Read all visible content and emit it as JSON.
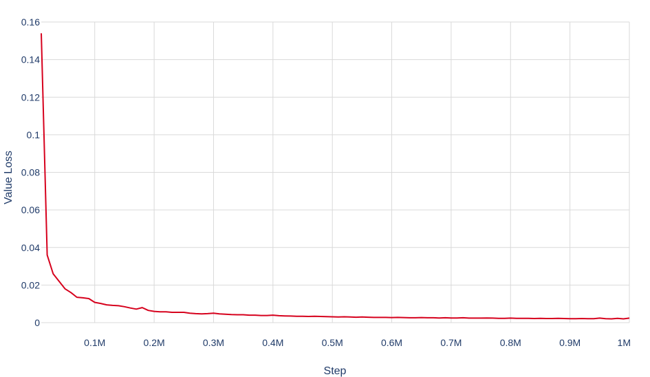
{
  "chart_data": {
    "type": "line",
    "xlabel": "Step",
    "ylabel": "Value Loss",
    "xlim": [
      0.01,
      1.0
    ],
    "ylim": [
      0,
      0.16
    ],
    "x_unit": "M",
    "grid": true,
    "x_ticks": [
      {
        "value": 0.1,
        "label": "0.1M"
      },
      {
        "value": 0.2,
        "label": "0.2M"
      },
      {
        "value": 0.3,
        "label": "0.3M"
      },
      {
        "value": 0.4,
        "label": "0.4M"
      },
      {
        "value": 0.5,
        "label": "0.5M"
      },
      {
        "value": 0.6,
        "label": "0.6M"
      },
      {
        "value": 0.7,
        "label": "0.7M"
      },
      {
        "value": 0.8,
        "label": "0.8M"
      },
      {
        "value": 0.9,
        "label": "0.9M"
      },
      {
        "value": 1.0,
        "label": "1M"
      }
    ],
    "y_ticks": [
      {
        "value": 0,
        "label": "0"
      },
      {
        "value": 0.02,
        "label": "0.02"
      },
      {
        "value": 0.04,
        "label": "0.04"
      },
      {
        "value": 0.06,
        "label": "0.06"
      },
      {
        "value": 0.08,
        "label": "0.08"
      },
      {
        "value": 0.1,
        "label": "0.1"
      },
      {
        "value": 0.12,
        "label": "0.12"
      },
      {
        "value": 0.14,
        "label": "0.14"
      },
      {
        "value": 0.16,
        "label": "0.16"
      }
    ],
    "series": [
      {
        "color": "#d6001c",
        "x": [
          0.01,
          0.02,
          0.03,
          0.04,
          0.05,
          0.06,
          0.07,
          0.08,
          0.09,
          0.1,
          0.11,
          0.12,
          0.13,
          0.14,
          0.15,
          0.16,
          0.17,
          0.18,
          0.19,
          0.2,
          0.21,
          0.22,
          0.23,
          0.24,
          0.25,
          0.26,
          0.27,
          0.28,
          0.29,
          0.3,
          0.31,
          0.32,
          0.33,
          0.34,
          0.35,
          0.36,
          0.37,
          0.38,
          0.39,
          0.4,
          0.41,
          0.42,
          0.43,
          0.44,
          0.45,
          0.46,
          0.47,
          0.48,
          0.49,
          0.5,
          0.51,
          0.52,
          0.53,
          0.54,
          0.55,
          0.56,
          0.57,
          0.58,
          0.59,
          0.6,
          0.61,
          0.62,
          0.63,
          0.64,
          0.65,
          0.66,
          0.67,
          0.68,
          0.69,
          0.7,
          0.71,
          0.72,
          0.73,
          0.74,
          0.75,
          0.76,
          0.77,
          0.78,
          0.79,
          0.8,
          0.81,
          0.82,
          0.83,
          0.84,
          0.85,
          0.86,
          0.87,
          0.88,
          0.89,
          0.9,
          0.91,
          0.92,
          0.93,
          0.94,
          0.95,
          0.96,
          0.97,
          0.98,
          0.99,
          1.0
        ],
        "y": [
          0.154,
          0.036,
          0.026,
          0.022,
          0.018,
          0.016,
          0.0135,
          0.0132,
          0.0128,
          0.0108,
          0.0102,
          0.0095,
          0.0092,
          0.009,
          0.0085,
          0.0078,
          0.0072,
          0.008,
          0.0065,
          0.006,
          0.0058,
          0.0058,
          0.0055,
          0.0055,
          0.0055,
          0.005,
          0.0048,
          0.0047,
          0.0048,
          0.005,
          0.0047,
          0.0045,
          0.0043,
          0.0042,
          0.0042,
          0.004,
          0.004,
          0.0038,
          0.0038,
          0.004,
          0.0037,
          0.0036,
          0.0035,
          0.0034,
          0.0034,
          0.0033,
          0.0034,
          0.0033,
          0.0032,
          0.0031,
          0.003,
          0.0031,
          0.003,
          0.0029,
          0.003,
          0.0029,
          0.0028,
          0.0028,
          0.0028,
          0.0027,
          0.0028,
          0.0027,
          0.0026,
          0.0026,
          0.0027,
          0.0026,
          0.0026,
          0.0025,
          0.0026,
          0.0025,
          0.0025,
          0.0026,
          0.0024,
          0.0024,
          0.0024,
          0.0025,
          0.0024,
          0.0023,
          0.0023,
          0.0024,
          0.0023,
          0.0023,
          0.0023,
          0.0022,
          0.0023,
          0.0022,
          0.0022,
          0.0023,
          0.0022,
          0.0021,
          0.0021,
          0.0022,
          0.0021,
          0.0021,
          0.0024,
          0.0021,
          0.002,
          0.0023,
          0.002,
          0.0024
        ]
      }
    ]
  }
}
